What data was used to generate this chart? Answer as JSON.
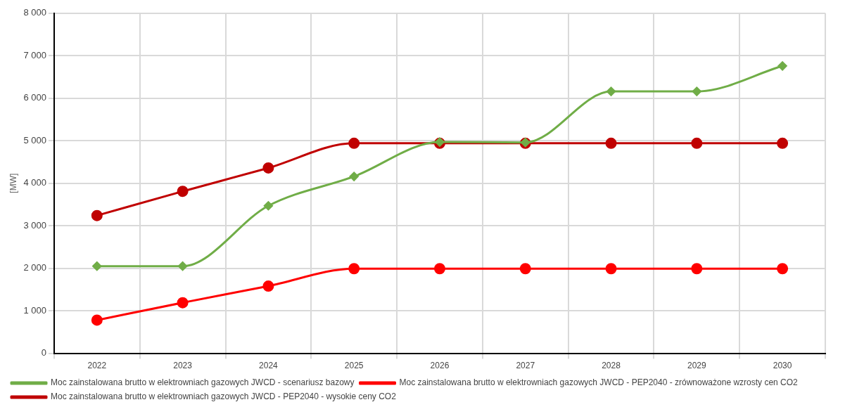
{
  "chart_data": {
    "type": "line",
    "ylabel": "[MW]",
    "categories": [
      "2022",
      "2023",
      "2024",
      "2025",
      "2026",
      "2027",
      "2028",
      "2029",
      "2030"
    ],
    "series": [
      {
        "name": "Moc zainstalowana brutto w elektrowniach gazowych JWCD - scenariusz bazowy",
        "color": "#70ad47",
        "marker": "diamond",
        "values": [
          2050,
          2050,
          3470,
          4160,
          4970,
          4960,
          6160,
          6160,
          6760
        ]
      },
      {
        "name": "Moc zainstalowana brutto w elektrowniach gazowych JWCD - PEP2040 - zrównoważone wzrosty cen CO2",
        "color": "#ff0000",
        "marker": "circle",
        "values": [
          780,
          1190,
          1580,
          1990,
          1990,
          1990,
          1990,
          1990,
          1990
        ]
      },
      {
        "name": "Moc zainstalowana brutto w elektrowniach gazowych JWCD - PEP2040 - wysokie ceny CO2",
        "color": "#c00000",
        "marker": "circle",
        "values": [
          3240,
          3810,
          4360,
          4940,
          4940,
          4940,
          4940,
          4940,
          4940
        ]
      }
    ],
    "ylim": [
      0,
      8000
    ],
    "yticks": [
      0,
      {
        "value": 1000,
        "label": "1 000"
      },
      {
        "value": 2000,
        "label": "2 000"
      },
      {
        "value": 3000,
        "label": "3 000"
      },
      {
        "value": 4000,
        "label": "4 000"
      },
      {
        "value": 5000,
        "label": "5 000"
      },
      {
        "value": 6000,
        "label": "6 000"
      },
      {
        "value": 7000,
        "label": "7 000"
      },
      {
        "value": 8000,
        "label": "8 000"
      }
    ],
    "grid": true,
    "legend": "bottom",
    "line_style": "solid"
  }
}
